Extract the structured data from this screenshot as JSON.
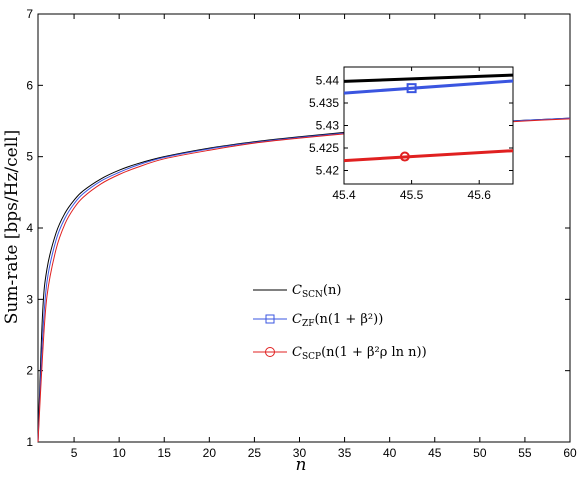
{
  "chart_data": [
    {
      "type": "line",
      "xlabel": "n",
      "ylabel": "Sum-rate [bps/Hz/cell]",
      "xlim": [
        1,
        60
      ],
      "ylim": [
        1,
        7
      ],
      "xticks": [
        5,
        10,
        15,
        20,
        25,
        30,
        35,
        40,
        45,
        50,
        55,
        60
      ],
      "yticks": [
        1,
        2,
        3,
        4,
        5,
        6,
        7
      ],
      "grid": false,
      "legend_position": "center-right",
      "series": [
        {
          "name": "C_SCN(n)",
          "legend_main": "C",
          "legend_sub": "SCN",
          "legend_rest": "(n)",
          "color": "#000000",
          "marker": "none",
          "x": [
            1,
            1.5,
            2,
            3,
            4,
            5,
            6,
            8,
            10,
            12,
            15,
            20,
            25,
            30,
            35,
            40,
            45,
            50,
            55,
            60
          ],
          "y": [
            1.0,
            2.78,
            3.43,
            3.93,
            4.21,
            4.39,
            4.52,
            4.69,
            4.81,
            4.9,
            5.0,
            5.12,
            5.21,
            5.28,
            5.34,
            5.39,
            5.44,
            5.48,
            5.51,
            5.54
          ]
        },
        {
          "name": "C_ZF(n(1+β²))",
          "legend_main": "C",
          "legend_sub": "ZF",
          "legend_rest": "(n(1 + β²))",
          "color": "#3a55e0",
          "marker": "square",
          "x": [
            1,
            1.5,
            2,
            3,
            4,
            5,
            6,
            8,
            10,
            12,
            15,
            20,
            25,
            30,
            35,
            40,
            45,
            50,
            55,
            60
          ],
          "y": [
            1.0,
            2.45,
            3.25,
            3.83,
            4.14,
            4.34,
            4.48,
            4.66,
            4.78,
            4.88,
            4.99,
            5.11,
            5.2,
            5.27,
            5.33,
            5.39,
            5.43,
            5.47,
            5.51,
            5.54
          ]
        },
        {
          "name": "C_SCP(n(1+β²ρ ln n))",
          "legend_main": "C",
          "legend_sub": "SCP",
          "legend_rest": "(n(1 + β²ρ ln n))",
          "color": "#e02020",
          "marker": "circle",
          "x": [
            1,
            1.5,
            2,
            3,
            4,
            5,
            6,
            8,
            10,
            12,
            15,
            20,
            25,
            30,
            35,
            40,
            45,
            50,
            55,
            60
          ],
          "y": [
            1.0,
            2.2,
            3.05,
            3.7,
            4.06,
            4.28,
            4.43,
            4.62,
            4.75,
            4.85,
            4.97,
            5.09,
            5.19,
            5.26,
            5.32,
            5.38,
            5.42,
            5.46,
            5.5,
            5.53
          ]
        }
      ]
    },
    {
      "type": "line",
      "role": "inset-zoom",
      "xlim": [
        45.4,
        45.65
      ],
      "ylim": [
        5.417,
        5.443
      ],
      "xticks": [
        45.4,
        45.5,
        45.6
      ],
      "yticks": [
        5.42,
        5.425,
        5.43,
        5.435,
        5.44
      ],
      "xtick_labels": [
        "45.4",
        "45.5",
        "45.6"
      ],
      "ytick_labels": [
        "5.42",
        "5.425",
        "5.43",
        "5.435",
        "5.44"
      ],
      "series": [
        {
          "name": "C_SCN(n)",
          "color": "#000000",
          "marker": "none",
          "x": [
            45.4,
            45.65
          ],
          "y": [
            5.4398,
            5.4412
          ]
        },
        {
          "name": "C_ZF(n(1+β²))",
          "color": "#3a55e0",
          "marker": "square",
          "x": [
            45.4,
            45.65
          ],
          "y": [
            5.4372,
            5.4399
          ],
          "marker_at": [
            45.5,
            5.4383
          ]
        },
        {
          "name": "C_SCP(n(1+β²ρ ln n))",
          "color": "#e02020",
          "marker": "circle",
          "x": [
            45.4,
            45.65
          ],
          "y": [
            5.4222,
            5.4244
          ],
          "marker_at": [
            45.49,
            5.4231
          ]
        }
      ]
    }
  ]
}
